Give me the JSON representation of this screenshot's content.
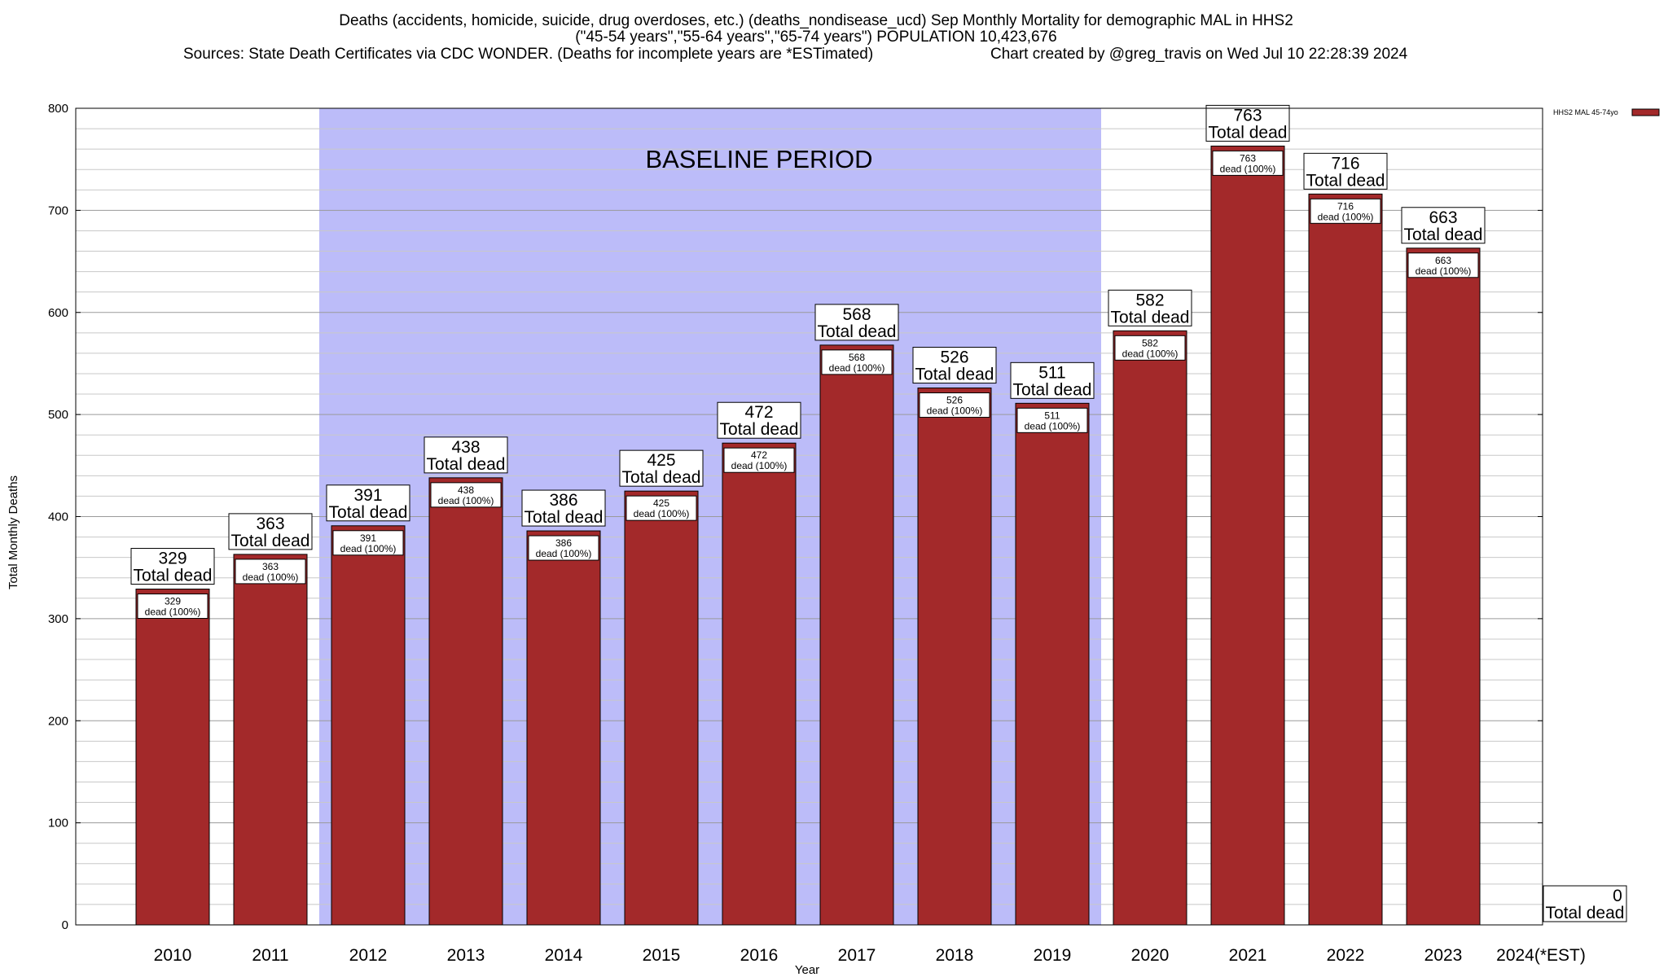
{
  "chart_data": {
    "type": "bar",
    "title_lines": [
      "Deaths (accidents, homicide, suicide, drug overdoses, etc.) (deaths_nondisease_ucd) Sep Monthly Mortality for demographic MAL in HHS2",
      "(\"45-54 years\",\"55-64 years\",\"65-74 years\") POPULATION 10,423,676",
      "Sources: State Death Certificates via CDC WONDER. (Deaths for incomplete years are *ESTimated)",
      "Chart created by @greg_travis on Wed Jul 10 22:28:39 2024"
    ],
    "xlabel": "Year",
    "ylabel": "Total Monthly Deaths",
    "ylim": [
      0,
      800
    ],
    "yticks": [
      0,
      100,
      200,
      300,
      400,
      500,
      600,
      700,
      800
    ],
    "minor_step": 20,
    "categories": [
      "2010",
      "2011",
      "2012",
      "2013",
      "2014",
      "2015",
      "2016",
      "2017",
      "2018",
      "2019",
      "2020",
      "2021",
      "2022",
      "2023",
      "2024(*EST)"
    ],
    "series": [
      {
        "name": "HHS2 MAL 45-74yo",
        "color": "#a3292a",
        "values": [
          329,
          363,
          391,
          438,
          386,
          425,
          472,
          568,
          526,
          511,
          582,
          763,
          716,
          663,
          0
        ]
      }
    ],
    "total_label": "Total dead",
    "inner_label": "dead (100%)",
    "baseline": {
      "label": "BASELINE PERIOD",
      "start": "2012",
      "end": "2019",
      "color": "#bcbcf9"
    },
    "legend": "top-right"
  }
}
